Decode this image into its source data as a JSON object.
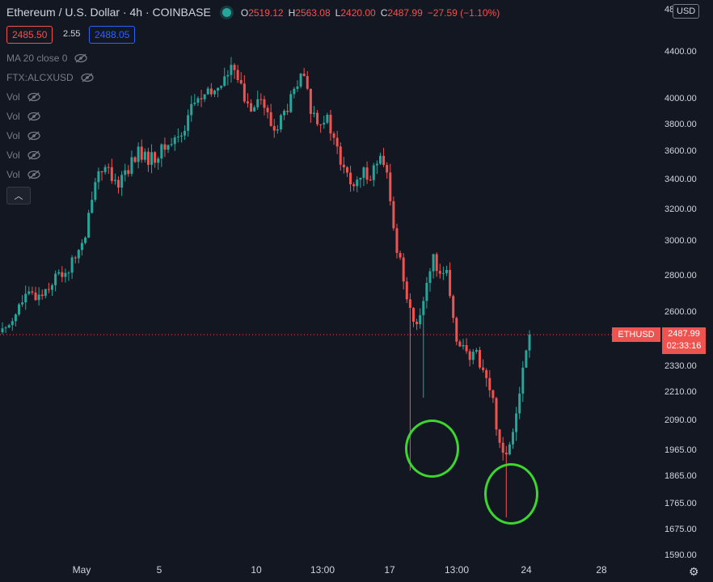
{
  "header": {
    "symbol": "Ethereum / U.S. Dollar · 4h · COINBASE",
    "open_label": "O",
    "open": "2519.12",
    "high_label": "H",
    "high": "2563.08",
    "low_label": "L",
    "low": "2420.00",
    "close_label": "C",
    "close": "2487.99",
    "change": "−27.59 (−1.10%)",
    "status_color": "#26a69a",
    "bid": "2485.50",
    "spread": "2.55",
    "ask": "2488.05"
  },
  "indicators": [
    {
      "label": "MA 20 close 0",
      "icon": "eye-off-icon"
    },
    {
      "label": "FTX:ALCXUSD",
      "icon": "eye-off-icon"
    },
    {
      "label": "Vol",
      "icon": "eye-off-icon"
    },
    {
      "label": "Vol",
      "icon": "eye-off-icon"
    },
    {
      "label": "Vol",
      "icon": "eye-off-icon"
    },
    {
      "label": "Vol",
      "icon": "eye-off-icon"
    },
    {
      "label": "Vol",
      "icon": "eye-off-icon"
    }
  ],
  "collapse_icon": "chevron-up-icon",
  "currency_button": "USD",
  "price_axis_partial": "48",
  "price_axis": [
    "4400.00",
    "4000.00",
    "3800.00",
    "3600.00",
    "3400.00",
    "3200.00",
    "3000.00",
    "2800.00",
    "2600.00",
    "2330.00",
    "2210.00",
    "2090.00",
    "1965.00",
    "1865.00",
    "1765.00",
    "1675.00",
    "1590.00"
  ],
  "time_axis": [
    "May",
    "5",
    "10",
    "13:00",
    "17",
    "13:00",
    "24",
    "28"
  ],
  "last_price": {
    "symbol": "ETHUSD",
    "price": "2487.99",
    "countdown": "02:33:16"
  },
  "settings_icon": "gear-icon",
  "colors": {
    "up": "#26a69a",
    "down": "#ef5350",
    "background": "#131722",
    "highlight": "#3cd62e"
  },
  "chart_data": {
    "type": "candlestick",
    "interval": "4h",
    "y_scale": "log",
    "ylim": [
      1590,
      4800
    ],
    "last": 2487.99,
    "highlights": [
      {
        "target": "long lower wick",
        "low": 1890
      },
      {
        "target": "long lower wick",
        "low": 1720
      }
    ],
    "path": [
      [
        0,
        2500
      ],
      [
        3,
        2680
      ],
      [
        5,
        2700
      ],
      [
        7,
        2790
      ],
      [
        9,
        2850
      ],
      [
        10,
        2950
      ],
      [
        11,
        3000
      ],
      [
        12,
        3350
      ],
      [
        13,
        3500
      ],
      [
        14,
        3450
      ],
      [
        15,
        3350
      ],
      [
        16,
        3450
      ],
      [
        17,
        3500
      ],
      [
        18,
        3600
      ],
      [
        19,
        3550
      ],
      [
        20,
        3550
      ],
      [
        21,
        3600
      ],
      [
        22,
        3650
      ],
      [
        23,
        3700
      ],
      [
        24,
        3750
      ],
      [
        25,
        3950
      ],
      [
        26,
        4000
      ],
      [
        28,
        4050
      ],
      [
        29,
        4150
      ],
      [
        30,
        4200
      ],
      [
        31,
        4300
      ],
      [
        32,
        4000
      ],
      [
        33,
        3950
      ],
      [
        34,
        4050
      ],
      [
        35,
        3900
      ],
      [
        36,
        3750
      ],
      [
        37,
        3850
      ],
      [
        38,
        3950
      ],
      [
        39,
        4100
      ],
      [
        40,
        4200
      ],
      [
        41,
        3900
      ],
      [
        42,
        3850
      ],
      [
        43,
        3850
      ],
      [
        44,
        3700
      ],
      [
        45,
        3500
      ],
      [
        46,
        3400
      ],
      [
        47,
        3350
      ],
      [
        48,
        3450
      ],
      [
        49,
        3450
      ],
      [
        50,
        3550
      ],
      [
        51,
        3450
      ],
      [
        52,
        3050
      ],
      [
        53,
        2850
      ],
      [
        54,
        2650
      ],
      [
        55,
        2500
      ],
      [
        56,
        2700
      ],
      [
        57,
        2900
      ],
      [
        58,
        2850
      ],
      [
        59,
        2800
      ],
      [
        60,
        2500
      ],
      [
        61,
        2450
      ],
      [
        62,
        2350
      ],
      [
        63,
        2400
      ],
      [
        64,
        2300
      ],
      [
        65,
        2200
      ],
      [
        66,
        2000
      ],
      [
        67,
        1950
      ],
      [
        68,
        2100
      ],
      [
        69,
        2300
      ],
      [
        70,
        2487.99
      ]
    ],
    "wick_overrides": [
      {
        "i": 54,
        "low": 1890
      },
      {
        "i": 56,
        "low": 2190
      },
      {
        "i": 67,
        "low": 1720
      }
    ]
  }
}
